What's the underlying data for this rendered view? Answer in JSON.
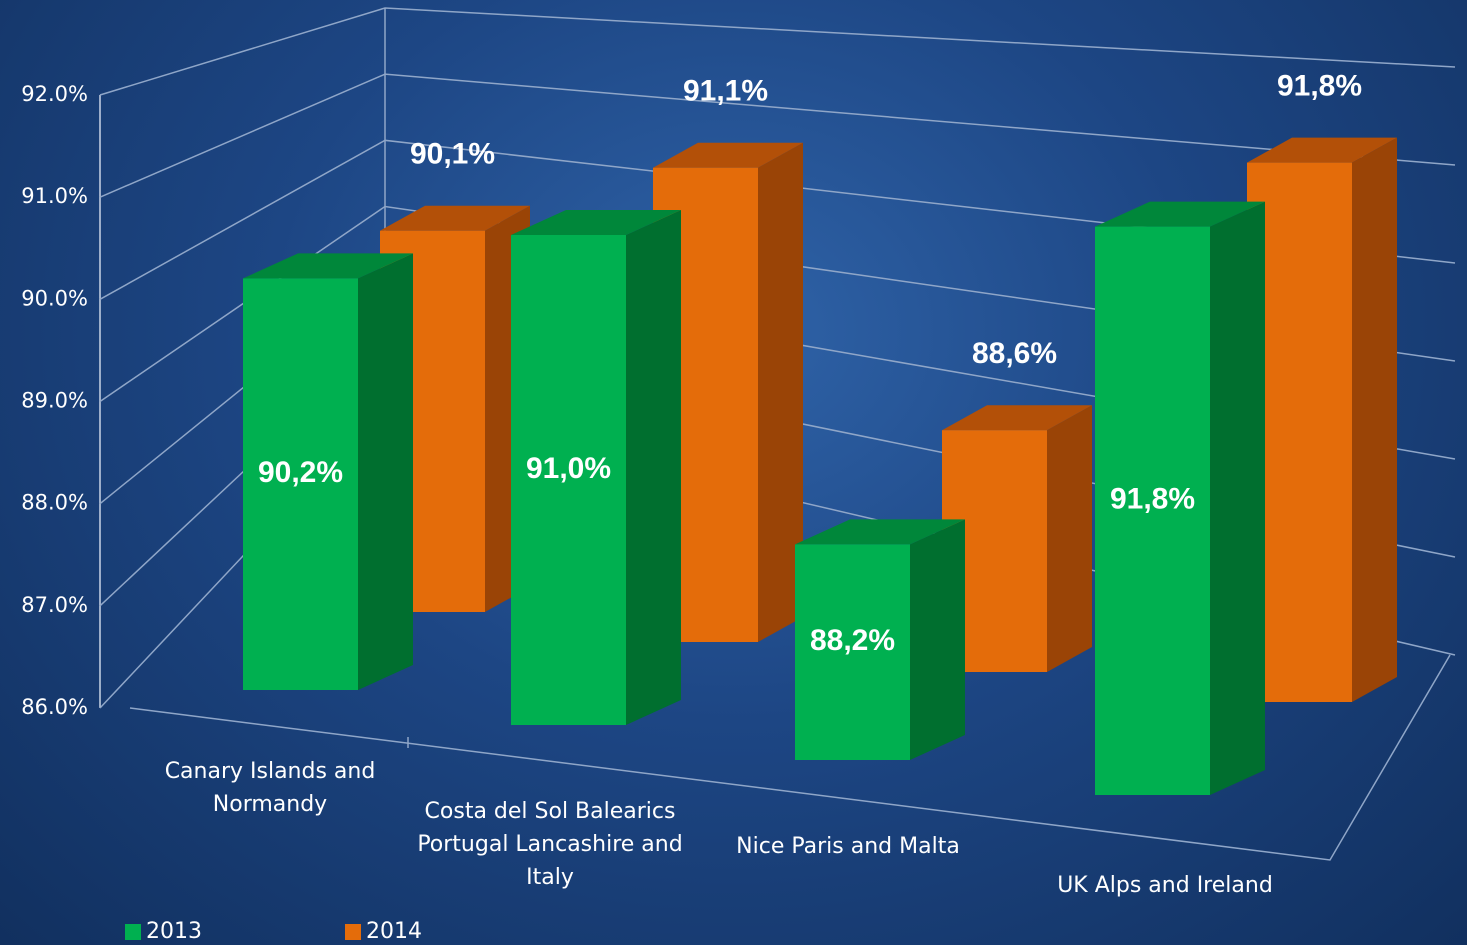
{
  "chart_data": {
    "type": "bar3d",
    "categories": [
      "Canary Islands and Normandy",
      "Costa del Sol Balearics Portugal Lancashire and Italy",
      "Nice Paris and Malta",
      "UK Alps and Ireland"
    ],
    "series": [
      {
        "name": "2013",
        "color": "#00b050",
        "values": [
          90.2,
          91.0,
          88.2,
          91.8
        ],
        "value_labels": [
          "90,2%",
          "91,0%",
          "88,2%",
          "91,8%"
        ]
      },
      {
        "name": "2014",
        "color": "#e46c0a",
        "values": [
          90.1,
          91.1,
          88.6,
          91.8
        ],
        "value_labels": [
          "90,1%",
          "91,1%",
          "88,6%",
          "91,8%"
        ]
      }
    ],
    "ylim": [
      86,
      92
    ],
    "yticks": [
      {
        "value": 86,
        "label": "86.0%"
      },
      {
        "value": 87,
        "label": "87.0%"
      },
      {
        "value": 88,
        "label": "88.0%"
      },
      {
        "value": 89,
        "label": "89.0%"
      },
      {
        "value": 90,
        "label": "90.0%"
      },
      {
        "value": 91,
        "label": "91.0%"
      },
      {
        "value": 92,
        "label": "92.0%"
      }
    ],
    "grid": true,
    "legend": "bottom-left"
  }
}
